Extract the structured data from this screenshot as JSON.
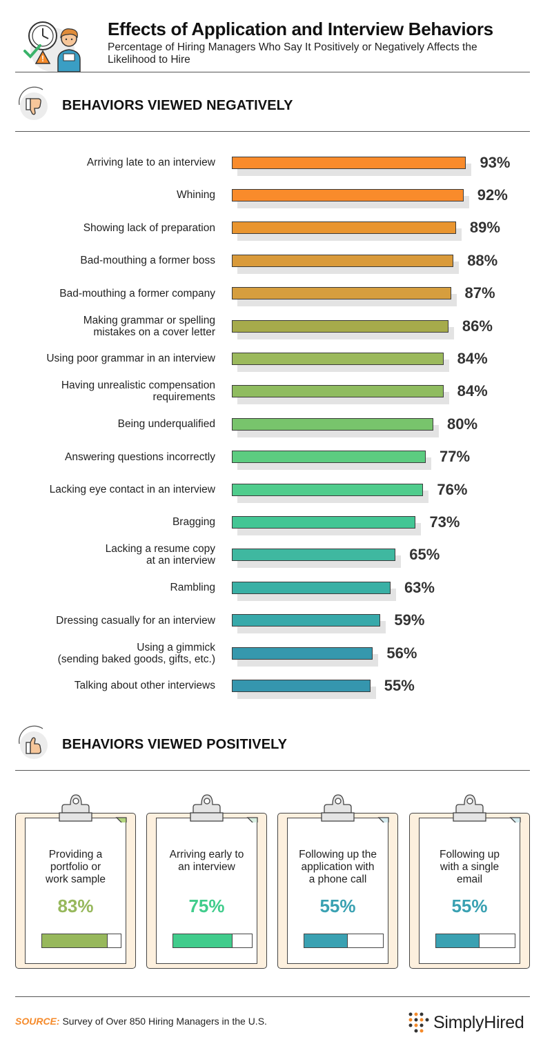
{
  "header": {
    "title": "Effects of Application and Interview Behaviors",
    "subtitle": "Percentage of Hiring Managers Who Say It Positively or Negatively Affects the Likelihood to Hire",
    "icon": "clock-person-warning-illustration"
  },
  "negative": {
    "title": "BEHAVIORS VIEWED NEGATIVELY",
    "icon": "thumbs-down-icon"
  },
  "positive": {
    "title": "BEHAVIORS VIEWED POSITIVELY",
    "icon": "thumbs-up-icon"
  },
  "chart_data": [
    {
      "type": "bar",
      "orientation": "horizontal",
      "title": "BEHAVIORS VIEWED NEGATIVELY",
      "categories": [
        "Arriving late to an interview",
        "Whining",
        "Showing lack of preparation",
        "Bad-mouthing a former boss",
        "Bad-mouthing a former company",
        "Making grammar or spelling mistakes on a cover letter",
        "Using poor grammar in an interview",
        "Having unrealistic compensation requirements",
        "Being underqualified",
        "Answering questions incorrectly",
        "Lacking eye contact in an interview",
        "Bragging",
        "Lacking a resume copy at an interview",
        "Rambling",
        "Dressing casually for an interview",
        "Using a gimmick (sending baked goods, gifts, etc.)",
        "Talking about other interviews"
      ],
      "label_lines": [
        [
          "Arriving late to an interview"
        ],
        [
          "Whining"
        ],
        [
          "Showing lack of preparation"
        ],
        [
          "Bad-mouthing a former boss"
        ],
        [
          "Bad-mouthing a former company"
        ],
        [
          "Making grammar or spelling",
          "mistakes on a cover letter"
        ],
        [
          "Using poor grammar in an interview"
        ],
        [
          "Having unrealistic compensation",
          "requirements"
        ],
        [
          "Being underqualified"
        ],
        [
          "Answering questions incorrectly"
        ],
        [
          "Lacking eye contact in an interview"
        ],
        [
          "Bragging"
        ],
        [
          "Lacking a resume copy",
          "at an interview"
        ],
        [
          "Rambling"
        ],
        [
          "Dressing casually for an interview"
        ],
        [
          "Using a gimmick",
          "(sending baked goods, gifts, etc.)"
        ],
        [
          "Talking about other interviews"
        ]
      ],
      "values": [
        93,
        92,
        89,
        88,
        87,
        86,
        84,
        84,
        80,
        77,
        76,
        73,
        65,
        63,
        59,
        56,
        55
      ],
      "value_labels": [
        "93%",
        "92%",
        "89%",
        "88%",
        "87%",
        "86%",
        "84%",
        "84%",
        "80%",
        "77%",
        "76%",
        "73%",
        "65%",
        "63%",
        "59%",
        "56%",
        "55%"
      ],
      "colors": [
        "#f98b2b",
        "#f98b2b",
        "#e9952f",
        "#d99a3a",
        "#d69e3e",
        "#a6ab4b",
        "#9bb95c",
        "#8fbc5f",
        "#78c46c",
        "#5ccc80",
        "#4fcc8c",
        "#43c694",
        "#3fb8a0",
        "#39b0a5",
        "#37a9aa",
        "#3598ad",
        "#3596ae"
      ],
      "xlim": [
        0,
        100
      ]
    },
    {
      "type": "bar",
      "title": "BEHAVIORS VIEWED POSITIVELY",
      "categories": [
        "Providing a portfolio or work sample",
        "Arriving early to an interview",
        "Following up the application with a phone call",
        "Following up with a single email"
      ],
      "label_lines": [
        [
          "Providing a",
          "portfolio or",
          "work sample"
        ],
        [
          "Arriving early to",
          "an interview"
        ],
        [
          "Following up the",
          "application with",
          "a phone call"
        ],
        [
          "Following up",
          "with a single",
          "email"
        ]
      ],
      "values": [
        83,
        75,
        55,
        55
      ],
      "value_labels": [
        "83%",
        "75%",
        "55%",
        "55%"
      ],
      "colors": [
        "#97b85c",
        "#41cc8c",
        "#3aa1b2",
        "#3aa1b2"
      ],
      "tab_colors": [
        "#b3d57e",
        "#d9f0e2",
        "#d6edf1",
        "#d6edf1"
      ],
      "ylim": [
        0,
        100
      ]
    }
  ],
  "footer": {
    "source_key": "SOURCE:",
    "source_text": " Survey of Over 850 Hiring Managers in the U.S.",
    "brand": "SimplyHired",
    "brand_icon": "simplyhired-logo-dots"
  }
}
